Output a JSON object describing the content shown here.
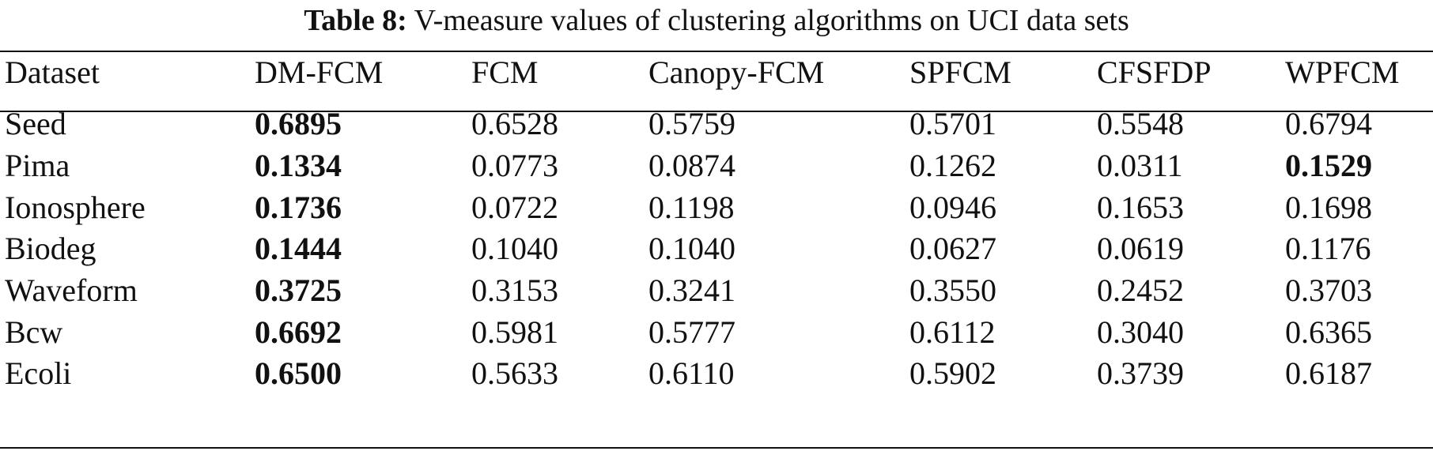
{
  "caption": {
    "label": "Table 8:",
    "text": "V-measure values of clustering algorithms on UCI data sets"
  },
  "table": {
    "headers": [
      "Dataset",
      "DM-FCM",
      "FCM",
      "Canopy-FCM",
      "SPFCM",
      "CFSFDP",
      "WPFCM"
    ],
    "rows": [
      {
        "cells": [
          "Seed",
          "0.6895",
          "0.6528",
          "0.5759",
          "0.5701",
          "0.5548",
          "0.6794"
        ],
        "bold": [
          1
        ]
      },
      {
        "cells": [
          "Pima",
          "0.1334",
          "0.0773",
          "0.0874",
          "0.1262",
          "0.0311",
          "0.1529"
        ],
        "bold": [
          1,
          6
        ]
      },
      {
        "cells": [
          "Ionosphere",
          "0.1736",
          "0.0722",
          "0.1198",
          "0.0946",
          "0.1653",
          "0.1698"
        ],
        "bold": [
          1
        ]
      },
      {
        "cells": [
          "Biodeg",
          "0.1444",
          "0.1040",
          "0.1040",
          "0.0627",
          "0.0619",
          "0.1176"
        ],
        "bold": [
          1
        ]
      },
      {
        "cells": [
          "Waveform",
          "0.3725",
          "0.3153",
          "0.3241",
          "0.3550",
          "0.2452",
          "0.3703"
        ],
        "bold": [
          1
        ]
      },
      {
        "cells": [
          "Bcw",
          "0.6692",
          "0.5981",
          "0.5777",
          "0.6112",
          "0.3040",
          "0.6365"
        ],
        "bold": [
          1
        ]
      },
      {
        "cells": [
          "Ecoli",
          "0.6500",
          "0.5633",
          "0.6110",
          "0.5902",
          "0.3739",
          "0.6187"
        ],
        "bold": [
          1
        ]
      }
    ]
  }
}
